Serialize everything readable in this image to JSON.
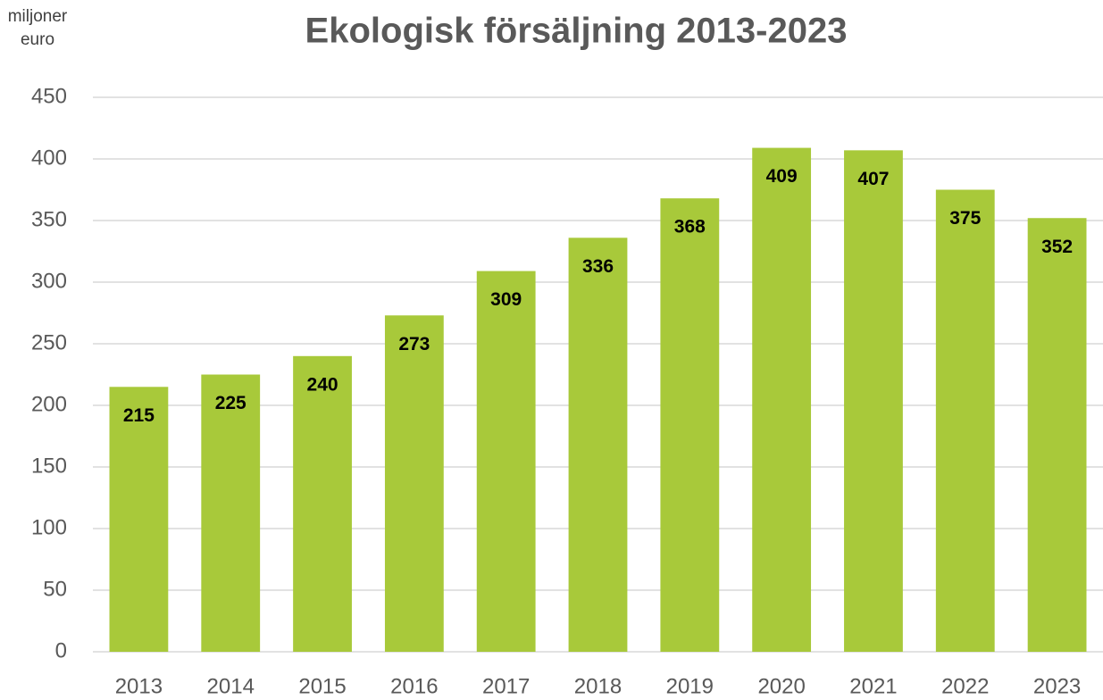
{
  "chart_data": {
    "type": "bar",
    "title": "Ekologisk försäljning 2013-2023",
    "y_label": "miljoner euro",
    "categories": [
      "2013",
      "2014",
      "2015",
      "2016",
      "2017",
      "2018",
      "2019",
      "2020",
      "2021",
      "2022",
      "2023"
    ],
    "values": [
      215,
      225,
      240,
      273,
      309,
      336,
      368,
      409,
      407,
      375,
      352
    ],
    "color": "#a8c93a",
    "ylim": [
      0,
      450
    ],
    "yticks": [
      0,
      50,
      100,
      150,
      200,
      250,
      300,
      350,
      400,
      450
    ],
    "grid": true
  }
}
